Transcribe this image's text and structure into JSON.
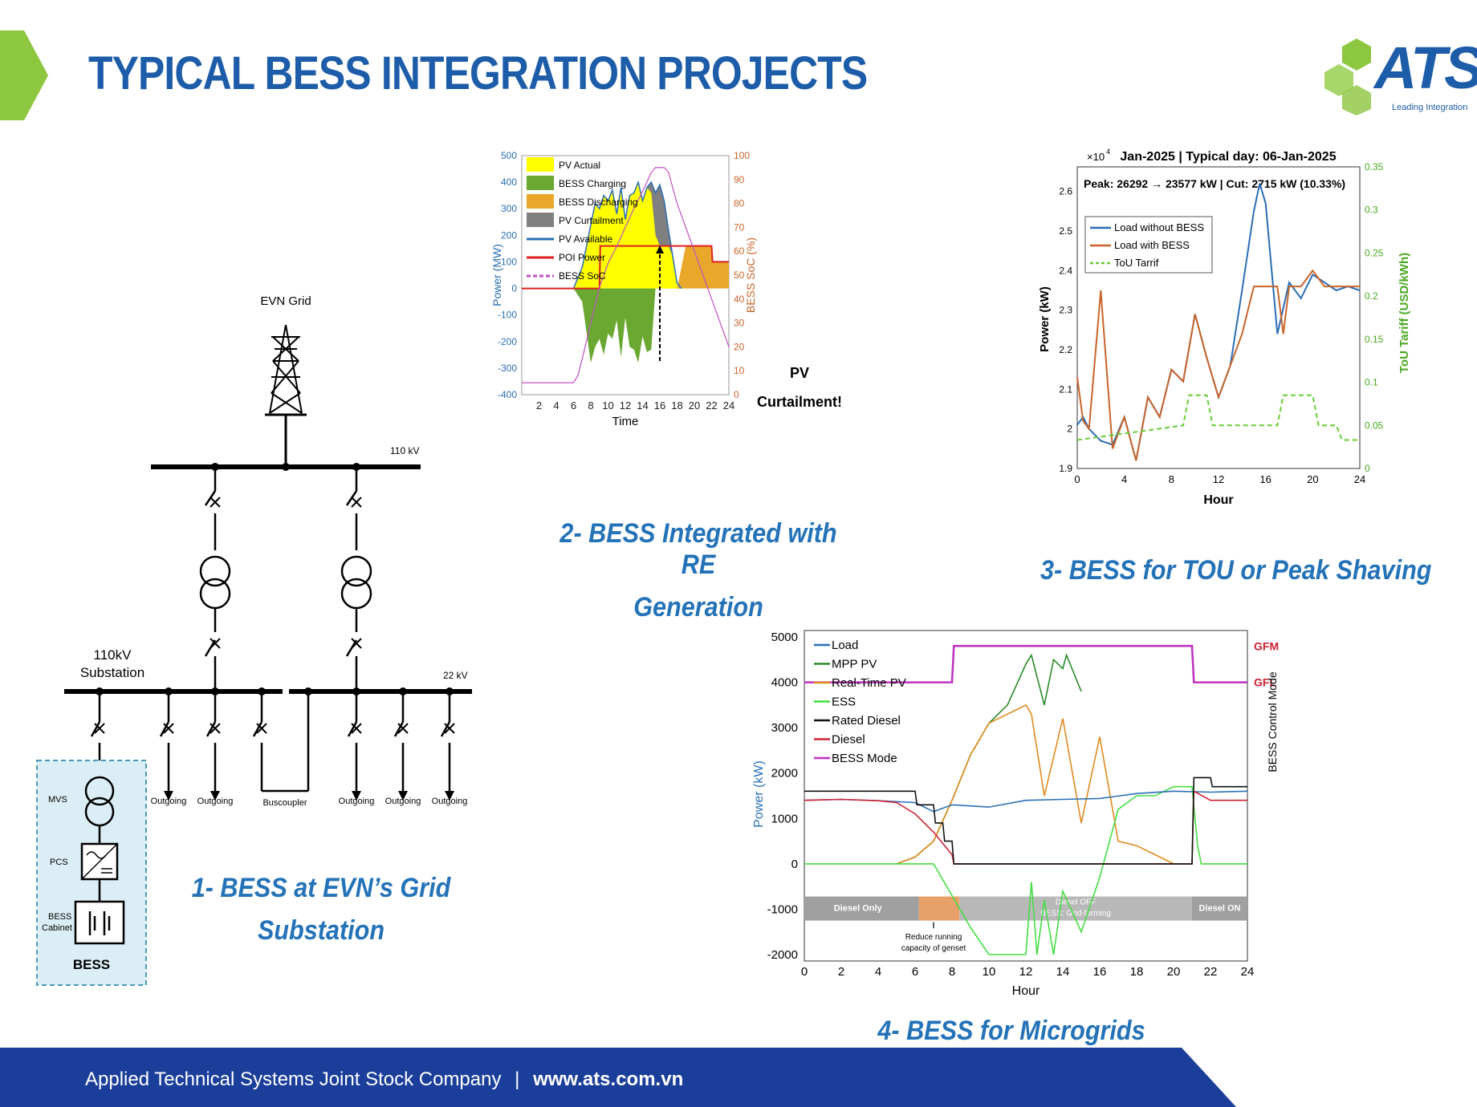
{
  "header": {
    "title": "TYPICAL BESS INTEGRATION PROJECTS",
    "logo_text": "ATS",
    "logo_tagline": "Leading Integration",
    "accent": "#1c5ca8",
    "green": "#8dc63f"
  },
  "sld": {
    "grid_label": "EVN Grid",
    "bus110_label": "110 kV",
    "bus22_label": "22 kV",
    "substation_label_1": "110kV",
    "substation_label_2": "Substation",
    "mvs_label": "MVS",
    "pcs_label": "PCS",
    "cabinet_label_1": "BESS",
    "cabinet_label_2": "Cabinet",
    "bess_label": "BESS",
    "buscoupler_label": "Buscoupler",
    "outgoing_labels": [
      "Outgoing",
      "Outgoing",
      "Outgoing",
      "Outgoing",
      "Outgoing"
    ]
  },
  "captions": {
    "c1_line1": "1- BESS at EVN’s Grid",
    "c1_line2": "Substation",
    "c2_line1": "2- BESS Integrated with RE",
    "c2_line2": "Generation",
    "c3": "3- BESS for TOU or Peak Shaving",
    "c4": "4- BESS for Microgrids"
  },
  "footer": {
    "company": "Applied Technical Systems Joint Stock Company",
    "separator": "|",
    "website": "www.ats.com.vn",
    "bg": "#1a3e9a"
  },
  "chart_data": [
    {
      "id": "re-generation",
      "type": "area",
      "xlabel": "Time",
      "ylabel": "Power (MW)",
      "y2label": "BESS SoC (%)",
      "xlim": [
        0,
        24
      ],
      "ylim": [
        -400,
        500
      ],
      "y2lim": [
        0,
        100
      ],
      "x_ticks": [
        "2",
        "4",
        "6",
        "8",
        "10",
        "12",
        "14",
        "16",
        "18",
        "20",
        "22",
        "24"
      ],
      "y_ticks": [
        "500",
        "400",
        "300",
        "200",
        "100",
        "0",
        "-100",
        "-200",
        "-300",
        "-400"
      ],
      "y2_ticks": [
        "100",
        "90",
        "80",
        "70",
        "60",
        "50",
        "40",
        "30",
        "20",
        "10",
        "0"
      ],
      "legend": [
        "PV Actual",
        "BESS Charging",
        "BESS Discharging",
        "PV Curtailment",
        "PV Available",
        "POI Power",
        "BESS SoC"
      ],
      "annotation_1": "PV",
      "annotation_2": "Curtailment!",
      "colors": {
        "pv_actual": "#ffff00",
        "bess_charging": "#6aa832",
        "bess_discharging": "#e9a82a",
        "pv_curtailment": "#808080",
        "pv_available": "#2a6db5",
        "poi_power": "#e02020",
        "bess_soc": "#c050c0"
      },
      "series": [
        {
          "name": "PV Available",
          "x": [
            6,
            7,
            8,
            8.5,
            9,
            9.5,
            10,
            10.5,
            11,
            11.5,
            12,
            12.5,
            13,
            13.5,
            14,
            14.5,
            15,
            15.5,
            16,
            16.5,
            17,
            17.5,
            18,
            18.5
          ],
          "values": [
            0,
            80,
            240,
            320,
            300,
            350,
            330,
            370,
            280,
            380,
            260,
            350,
            360,
            400,
            330,
            380,
            400,
            360,
            390,
            330,
            220,
            120,
            20,
            0
          ]
        },
        {
          "name": "PV Actual",
          "x": [
            6,
            7,
            8,
            8.5,
            9,
            9.5,
            10,
            10.5,
            11,
            11.5,
            12,
            12.5,
            13,
            13.5,
            14,
            14.5,
            15,
            15.5,
            16,
            16.5,
            17,
            17.5,
            18,
            18.5
          ],
          "values": [
            0,
            80,
            240,
            320,
            300,
            350,
            330,
            370,
            280,
            380,
            260,
            350,
            360,
            400,
            330,
            380,
            360,
            200,
            160,
            160,
            160,
            120,
            20,
            0
          ]
        },
        {
          "name": "BESS Charging",
          "x": [
            6,
            7,
            8,
            8.5,
            9,
            9.5,
            10,
            10.5,
            11,
            11.5,
            12,
            12.5,
            13,
            13.5,
            14,
            14.5,
            15,
            15.5
          ],
          "values": [
            0,
            -50,
            -280,
            -220,
            -190,
            -250,
            -170,
            -190,
            -120,
            -260,
            -110,
            -220,
            -230,
            -280,
            -180,
            -240,
            -230,
            0
          ]
        },
        {
          "name": "BESS Discharging",
          "x": [
            18,
            19,
            20,
            21,
            22,
            22.1,
            24
          ],
          "values": [
            0,
            160,
            160,
            160,
            160,
            100,
            100
          ]
        },
        {
          "name": "POI Power",
          "x": [
            0,
            6,
            6.5,
            9,
            9.1,
            22,
            22.1,
            24
          ],
          "values": [
            0,
            0,
            0,
            0,
            160,
            160,
            100,
            100
          ]
        },
        {
          "name": "BESS SoC",
          "x": [
            0,
            6,
            6.5,
            7,
            8,
            9,
            10,
            11,
            12,
            13,
            14,
            15,
            15.5,
            16.5,
            17,
            18,
            19,
            20,
            21,
            22,
            23,
            24
          ],
          "values": [
            5,
            5,
            8,
            15,
            30,
            45,
            55,
            62,
            70,
            78,
            85,
            93,
            95,
            95,
            93,
            80,
            70,
            60,
            50,
            40,
            30,
            20
          ]
        }
      ]
    },
    {
      "id": "tou-peak-shaving",
      "type": "line",
      "title": "Jan-2025 | Typical day: 06-Jan-2025",
      "annotation": "Peak: 26292 → 23577 kW | Cut: 2715 kW (10.33%)",
      "multiplier": "×10",
      "multiplier_exp": "4",
      "xlabel": "Hour",
      "ylabel": "Power (kW)",
      "y2label": "ToU Tariff (USD/kWh)",
      "xlim": [
        0,
        24
      ],
      "ylim": [
        1.9,
        2.65
      ],
      "y2lim": [
        0,
        0.35
      ],
      "x_ticks": [
        "0",
        "4",
        "8",
        "12",
        "16",
        "20",
        "24"
      ],
      "y_ticks": [
        "2.6",
        "2.5",
        "2.4",
        "2.3",
        "2.2",
        "2.1",
        "2",
        "1.9"
      ],
      "y2_ticks": [
        "0.35",
        "0.3",
        "0.25",
        "0.2",
        "0.15",
        "0.1",
        "0.05",
        "0"
      ],
      "legend": [
        "Load without BESS",
        "Load with BESS",
        "ToU Tarrif"
      ],
      "colors": {
        "without": "#2a6db5",
        "with": "#c8642a",
        "tou": "#66cc33"
      },
      "series": [
        {
          "name": "Load without BESS",
          "x": [
            0,
            0.5,
            1,
            2,
            3,
            4,
            5,
            6,
            7,
            8,
            9,
            10,
            11,
            12,
            13,
            14,
            15,
            15.5,
            16,
            17,
            18,
            19,
            20,
            21,
            22,
            23,
            24
          ],
          "values": [
            2.01,
            2.03,
            2.0,
            1.97,
            1.96,
            2.03,
            1.92,
            2.08,
            2.03,
            2.15,
            2.12,
            2.29,
            2.18,
            2.08,
            2.16,
            2.35,
            2.55,
            2.62,
            2.57,
            2.24,
            2.37,
            2.33,
            2.39,
            2.37,
            2.35,
            2.36,
            2.35
          ]
        },
        {
          "name": "Load with BESS",
          "x": [
            0,
            0.5,
            1,
            2,
            3,
            4,
            5,
            6,
            7,
            8,
            9,
            10,
            11,
            12,
            13,
            14,
            15,
            16,
            17,
            17.5,
            18,
            19,
            20,
            21,
            22,
            23,
            24
          ],
          "values": [
            2.13,
            2.02,
            2.0,
            2.35,
            1.95,
            2.03,
            1.92,
            2.08,
            2.03,
            2.15,
            2.12,
            2.29,
            2.18,
            2.08,
            2.16,
            2.24,
            2.36,
            2.36,
            2.36,
            2.24,
            2.36,
            2.36,
            2.4,
            2.36,
            2.36,
            2.36,
            2.36
          ]
        },
        {
          "name": "ToU Tarrif",
          "x": [
            0,
            9,
            9.5,
            11,
            11.5,
            17,
            17.5,
            20,
            20.5,
            22,
            22.5,
            24
          ],
          "values": [
            0.033,
            0.05,
            0.085,
            0.085,
            0.05,
            0.05,
            0.085,
            0.085,
            0.05,
            0.05,
            0.033,
            0.033
          ]
        }
      ]
    },
    {
      "id": "microgrid",
      "type": "line",
      "xlabel": "Hour",
      "ylabel": "Power (kW)",
      "y2label": "BESS Control Mode",
      "xlim": [
        0,
        24
      ],
      "ylim": [
        -2000,
        5000
      ],
      "x_ticks": [
        "0",
        "2",
        "4",
        "6",
        "8",
        "10",
        "12",
        "14",
        "16",
        "18",
        "20",
        "22",
        "24"
      ],
      "y_ticks": [
        "5000",
        "4000",
        "3000",
        "2000",
        "1000",
        "0",
        "-1000",
        "-2000"
      ],
      "y2_ticks": [
        "GFM",
        "GFL"
      ],
      "legend": [
        "Load",
        "MPP PV",
        "Real-Time PV",
        "ESS",
        "Rated Diesel",
        "Diesel",
        "BESS Mode"
      ],
      "bands": [
        "Diesel Only",
        "Diesel OFF",
        "BESS: Grid-forming",
        "Diesel ON"
      ],
      "annotation_1": "Reduce running",
      "annotation_2": "capacity of genset",
      "colors": {
        "load": "#2a70b8",
        "mpp": "#2a8a2a",
        "rtpv": "#e08a1e",
        "ess": "#44dd44",
        "rated": "#111111",
        "diesel": "#cc2233",
        "mode": "#c030c0"
      },
      "series": [
        {
          "name": "Load",
          "x": [
            0,
            2,
            4,
            6,
            7,
            8,
            10,
            12,
            14,
            16,
            18,
            20,
            22,
            24
          ],
          "values": [
            1400,
            1420,
            1390,
            1350,
            1150,
            1300,
            1250,
            1400,
            1420,
            1440,
            1550,
            1600,
            1580,
            1600
          ]
        },
        {
          "name": "MPP PV",
          "x": [
            5,
            6,
            7,
            8,
            9,
            10,
            11,
            12,
            12.3,
            13,
            13.5,
            14,
            14.2,
            15
          ],
          "values": [
            0,
            150,
            500,
            1400,
            2400,
            3100,
            3500,
            4400,
            4600,
            3500,
            4500,
            4300,
            4600,
            3800
          ]
        },
        {
          "name": "Real-Time PV",
          "x": [
            5,
            6,
            7,
            8,
            9,
            10,
            11,
            12,
            12.3,
            13,
            14,
            15,
            16,
            17,
            18,
            19,
            20
          ],
          "values": [
            0,
            150,
            500,
            1400,
            2400,
            3100,
            3300,
            3500,
            3300,
            1500,
            3200,
            900,
            2800,
            500,
            400,
            200,
            0
          ]
        },
        {
          "name": "ESS",
          "x": [
            0,
            7,
            8,
            9,
            10,
            12,
            12.3,
            12.6,
            13,
            13.5,
            14,
            15,
            16,
            17,
            18,
            19,
            20,
            21,
            21.3,
            21.5,
            24
          ],
          "values": [
            0,
            0,
            -700,
            -1400,
            -2000,
            -2000,
            -400,
            -2000,
            -800,
            -2000,
            -600,
            -1500,
            -300,
            1200,
            1500,
            1500,
            1700,
            1700,
            400,
            0,
            0
          ]
        },
        {
          "name": "Rated Diesel",
          "x": [
            0,
            6,
            6.1,
            7,
            7.1,
            7.5,
            7.6,
            8,
            8.1,
            21,
            21.1,
            22,
            22.1,
            24
          ],
          "values": [
            1600,
            1600,
            1300,
            1300,
            900,
            900,
            500,
            500,
            0,
            0,
            1900,
            1900,
            1700,
            1700
          ]
        },
        {
          "name": "Diesel",
          "x": [
            0,
            2,
            4,
            5,
            6,
            7,
            8,
            8.1,
            21,
            21.1,
            22,
            24
          ],
          "values": [
            1400,
            1420,
            1390,
            1350,
            1100,
            700,
            200,
            0,
            0,
            1600,
            1400,
            1400
          ]
        },
        {
          "name": "BESS Mode",
          "x": [
            0,
            8,
            8.1,
            21,
            21.1,
            24
          ],
          "values": [
            4000,
            4000,
            4800,
            4800,
            4000,
            4000
          ]
        }
      ]
    }
  ]
}
